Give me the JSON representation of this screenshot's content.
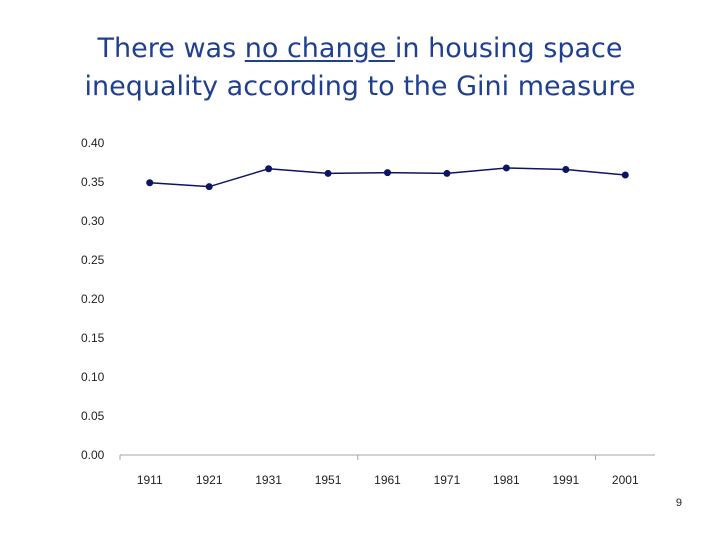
{
  "title": {
    "line1_pre": "There was ",
    "line1_underlined": "no change ",
    "line1_post": "in housing space",
    "line2": "inequality according to the Gini measure"
  },
  "page_number": "9",
  "colors": {
    "title": "#1f3f8f",
    "series_line": "#0b1560",
    "series_marker": "#0b1560",
    "axis": "#a6a6a6"
  },
  "chart_data": {
    "type": "line",
    "title": "There was no change in housing space inequality according to the Gini measure",
    "xlabel": "",
    "ylabel": "",
    "categories": [
      "1911",
      "1921",
      "1931",
      "1951",
      "1961",
      "1971",
      "1981",
      "1991",
      "2001"
    ],
    "y_tick_labels": [
      "0.00",
      "0.05",
      "0.10",
      "0.15",
      "0.20",
      "0.25",
      "0.30",
      "0.35",
      "0.40"
    ],
    "ylim": [
      0,
      0.4
    ],
    "grid": false,
    "legend": "none",
    "series": [
      {
        "values": [
          0.349,
          0.344,
          0.367,
          0.361,
          0.362,
          0.361,
          0.368,
          0.366,
          0.359
        ]
      }
    ]
  }
}
